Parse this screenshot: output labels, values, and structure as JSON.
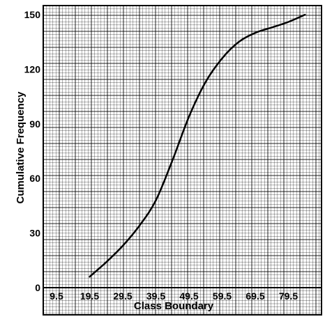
{
  "chart_data": {
    "type": "line",
    "title": "",
    "xlabel": "Class Boundary",
    "ylabel": "Cumulative Frequency",
    "xlim": [
      5.5,
      89.5
    ],
    "ylim": [
      0,
      155
    ],
    "x_ticks": [
      9.5,
      19.5,
      29.5,
      39.5,
      49.5,
      59.5,
      69.5,
      79.5
    ],
    "y_ticks": [
      0,
      30,
      60,
      90,
      120,
      150
    ],
    "grid": true,
    "series": [
      {
        "x": [
          19.5,
          24.5,
          29.5,
          34.5,
          39.5,
          44.5,
          49.5,
          54.5,
          59.5,
          64.5,
          69.5,
          74.5,
          79.5,
          84.5
        ],
        "values": [
          6,
          14,
          23,
          34,
          48,
          70,
          94,
          113,
          126,
          135,
          140,
          143,
          146,
          150
        ]
      }
    ]
  }
}
